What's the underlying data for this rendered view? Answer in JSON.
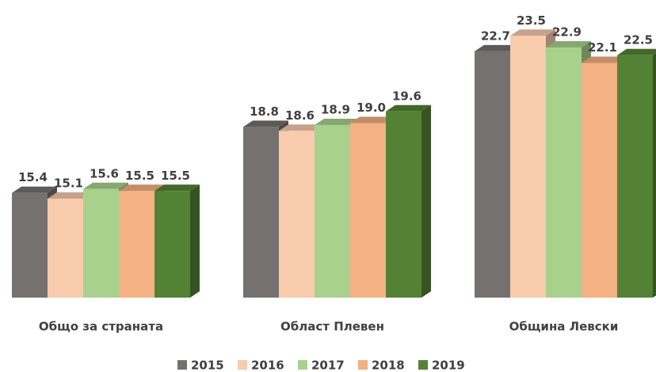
{
  "chart_data": {
    "type": "bar3d",
    "categories": [
      "Общо за страната",
      "Област Плевен",
      "Община Левски"
    ],
    "series": [
      {
        "name": "2015",
        "color": "#767171",
        "values": [
          15.4,
          18.8,
          22.7
        ],
        "value_labels": [
          "15.4",
          "18.8",
          "22.7"
        ]
      },
      {
        "name": "2016",
        "color": "#f8cbad",
        "values": [
          15.1,
          18.6,
          23.5
        ],
        "value_labels": [
          "15.1",
          "18.6",
          "23.5"
        ]
      },
      {
        "name": "2017",
        "color": "#a9d18e",
        "values": [
          15.6,
          18.9,
          22.9
        ],
        "value_labels": [
          "15.6",
          "18.9",
          "22.9"
        ]
      },
      {
        "name": "2018",
        "color": "#f4b183",
        "values": [
          15.5,
          19.0,
          22.1
        ],
        "value_labels": [
          "15.5",
          "19.0",
          "22.1"
        ]
      },
      {
        "name": "2019",
        "color": "#548235",
        "values": [
          15.5,
          19.6,
          22.5
        ],
        "value_labels": [
          "15.5",
          "19.6",
          "22.5"
        ]
      }
    ],
    "ylim": [
      10,
      24
    ],
    "legend": "bottom"
  }
}
